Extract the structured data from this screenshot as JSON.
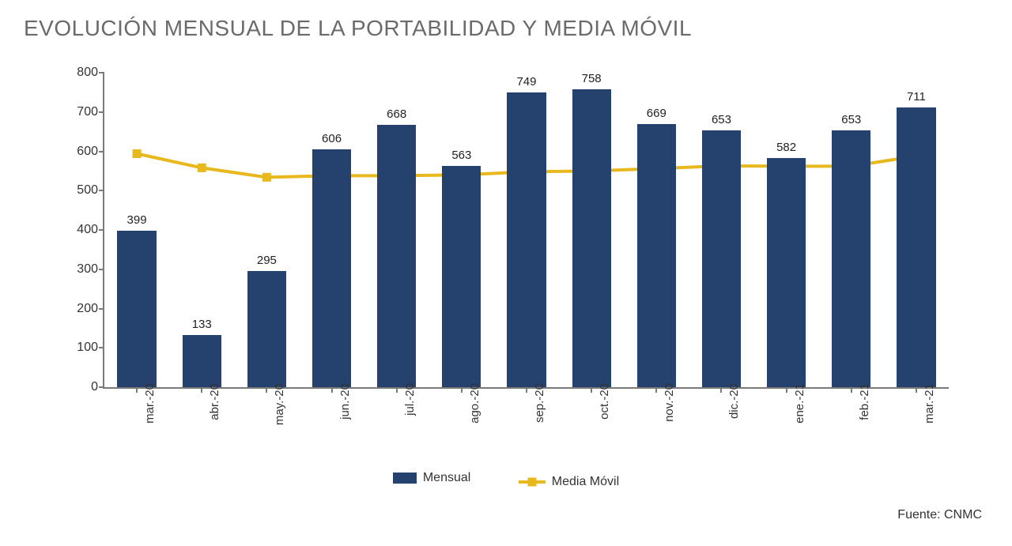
{
  "title": "EVOLUCIÓN MENSUAL DE LA PORTABILIDAD Y MEDIA MÓVIL",
  "source": "Fuente: CNMC",
  "chart": {
    "type": "bar+line",
    "categories": [
      "mar.-20",
      "abr.-20",
      "may.-20",
      "jun.-20",
      "jul.-20",
      "ago.-20",
      "sep.-20",
      "oct.-20",
      "nov.-20",
      "dic.-20",
      "ene.-21",
      "feb.-21",
      "mar.-21"
    ],
    "bar_series": {
      "name": "Mensual",
      "values": [
        399,
        133,
        295,
        606,
        668,
        563,
        749,
        758,
        669,
        653,
        582,
        653,
        711
      ],
      "color": "#25426f"
    },
    "line_series": {
      "name": "Media Móvil",
      "values": [
        594,
        558,
        534,
        538,
        538,
        540,
        548,
        550,
        556,
        563,
        562,
        562,
        588
      ],
      "color": "#e8b81f",
      "line_width": 4,
      "marker_size": 11,
      "marker_shape": "square"
    },
    "ylim": [
      0,
      800
    ],
    "ytick_step": 100,
    "axis_color": "#7a7a7a",
    "label_color": "#333333",
    "bar_width_ratio": 0.6,
    "title_fontsize": 28,
    "title_color": "#6b6b6b",
    "axis_fontsize": 16,
    "data_label_fontsize": 15,
    "background_color": "#ffffff"
  }
}
